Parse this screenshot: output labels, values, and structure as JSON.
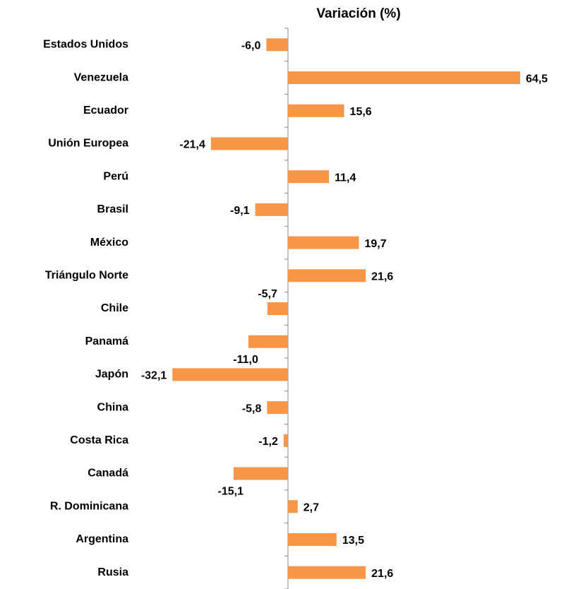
{
  "chart_data": {
    "type": "bar",
    "orientation": "horizontal",
    "title": "Variación (%)",
    "categories": [
      "Estados Unidos",
      "Venezuela",
      "Ecuador",
      "Unión Europea",
      "Perú",
      "Brasil",
      "México",
      "Triángulo Norte",
      "Chile",
      "Panamá",
      "Japón",
      "China",
      "Costa Rica",
      "Canadá",
      "R. Dominicana",
      "Argentina",
      "Rusia"
    ],
    "values": [
      -6.0,
      64.5,
      15.6,
      -21.4,
      11.4,
      -9.1,
      19.7,
      21.6,
      -5.7,
      -11.0,
      -32.1,
      -5.8,
      -1.2,
      -15.1,
      2.7,
      13.5,
      21.6
    ],
    "value_labels": [
      "-6,0",
      "64,5",
      "15,6",
      "-21,4",
      "11,4",
      "-9,1",
      "19,7",
      "21,6",
      "-5,7",
      "-11,0",
      "-32,1",
      "-5,8",
      "-1,2",
      "-15,1",
      "2,7",
      "13,5",
      "21,6"
    ],
    "color": "#f79646",
    "xlim": [
      -40,
      70
    ]
  }
}
